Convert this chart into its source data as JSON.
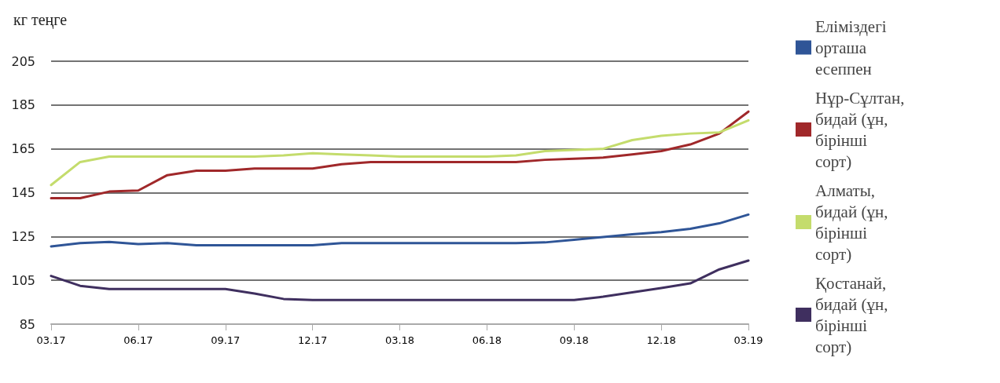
{
  "chart_data": {
    "type": "line",
    "ylabel": "кг теңге",
    "categories": [
      "03.17",
      null,
      null,
      "06.17",
      null,
      null,
      "09.17",
      null,
      null,
      "12.17",
      null,
      null,
      "03.18",
      null,
      null,
      "06.18",
      null,
      null,
      "09.18",
      null,
      null,
      "12.18",
      null,
      null,
      "03.19"
    ],
    "series": [
      {
        "name": "Еліміздегі орташа есеппен",
        "color": "#2f5597",
        "values": [
          120.5,
          122,
          122.5,
          121.5,
          122,
          121,
          121,
          121,
          121,
          121,
          122,
          122,
          122,
          122,
          122,
          122,
          122,
          122.3,
          123.5,
          124.8,
          126,
          127,
          128.5,
          131,
          135
        ]
      },
      {
        "name": "Нұр-Сұлтан, бидай (ұн, бірінші сорт)",
        "color": "#a0282a",
        "values": [
          142.5,
          142.5,
          145.5,
          146,
          153,
          155,
          155,
          156,
          156,
          156,
          158,
          159,
          159,
          159,
          159,
          159,
          159,
          160,
          160.5,
          161,
          162.5,
          164,
          167,
          172,
          182
        ]
      },
      {
        "name": "Алматы, бидай (ұн, бірінші сорт)",
        "color": "#c4dc6c",
        "values": [
          148.5,
          159,
          161.5,
          161.5,
          161.5,
          161.5,
          161.5,
          161.5,
          162,
          163,
          162.5,
          162,
          161.5,
          161.5,
          161.5,
          161.5,
          162,
          164,
          164.5,
          165,
          169,
          171,
          172,
          172.5,
          178
        ]
      },
      {
        "name": "Қостанай, бидай (ұн, бірінші сорт)",
        "color": "#3f2f5f",
        "values": [
          107,
          102.5,
          101,
          101,
          101,
          101,
          101,
          99,
          96.5,
          96,
          96,
          96,
          96,
          96,
          96,
          96,
          96,
          96,
          96,
          97.5,
          99.5,
          101.5,
          103.6,
          110,
          114
        ]
      }
    ],
    "ylim": [
      85,
      205
    ],
    "yticks": [
      85,
      105,
      125,
      145,
      165,
      185,
      205
    ],
    "grid": "y",
    "legend": "right",
    "marker": "none",
    "line_style": "solid"
  }
}
